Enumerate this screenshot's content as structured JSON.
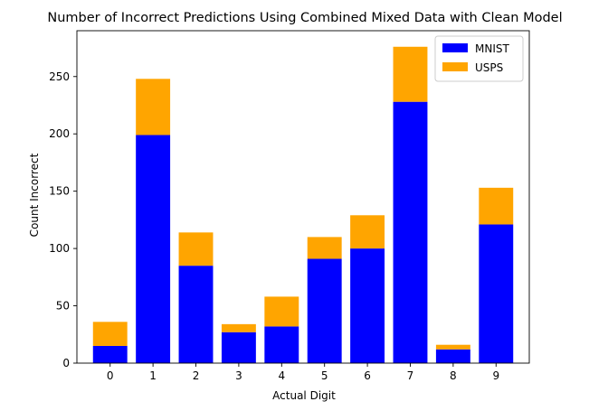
{
  "chart_data": {
    "type": "bar",
    "stacked": true,
    "title": "Number of Incorrect Predictions Using Combined Mixed Data with Clean Model",
    "xlabel": "Actual Digit",
    "ylabel": "Count Incorrect",
    "categories": [
      "0",
      "1",
      "2",
      "3",
      "4",
      "5",
      "6",
      "7",
      "8",
      "9"
    ],
    "series": [
      {
        "name": "MNIST",
        "color": "#0000ff",
        "values": [
          15,
          199,
          85,
          27,
          32,
          91,
          100,
          228,
          12,
          121
        ]
      },
      {
        "name": "USPS",
        "color": "#ffa500",
        "values": [
          21,
          49,
          29,
          7,
          26,
          19,
          29,
          48,
          4,
          32
        ]
      }
    ],
    "ylim": [
      0,
      290
    ],
    "yticks": [
      0,
      50,
      100,
      150,
      200,
      250
    ],
    "legend_position": "top-right"
  }
}
